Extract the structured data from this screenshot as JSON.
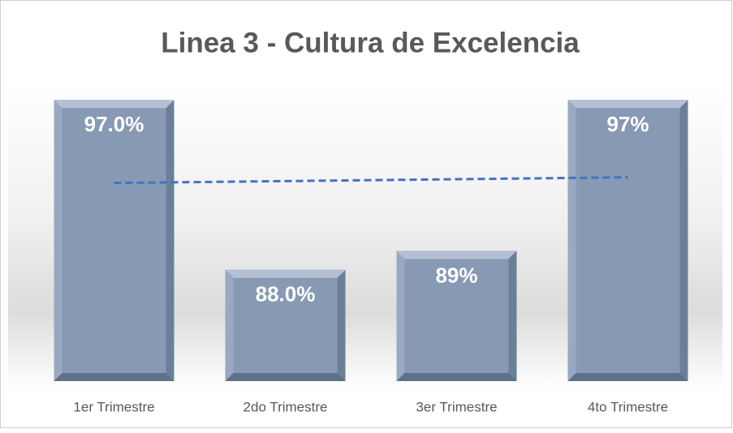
{
  "chart_data": {
    "type": "bar",
    "title": "Linea 3 - Cultura de Excelencia",
    "categories": [
      "1er Trimestre",
      "2do Trimestre",
      "3er Trimestre",
      "4to Trimestre"
    ],
    "values": [
      97,
      88,
      89,
      97
    ],
    "value_labels": [
      "97.0%",
      "88.0%",
      "89%",
      "97%"
    ],
    "color": "#8799b3",
    "ylim": [
      82.1,
      98
    ],
    "trendline": {
      "type": "linear",
      "color": "#4472c4"
    }
  }
}
